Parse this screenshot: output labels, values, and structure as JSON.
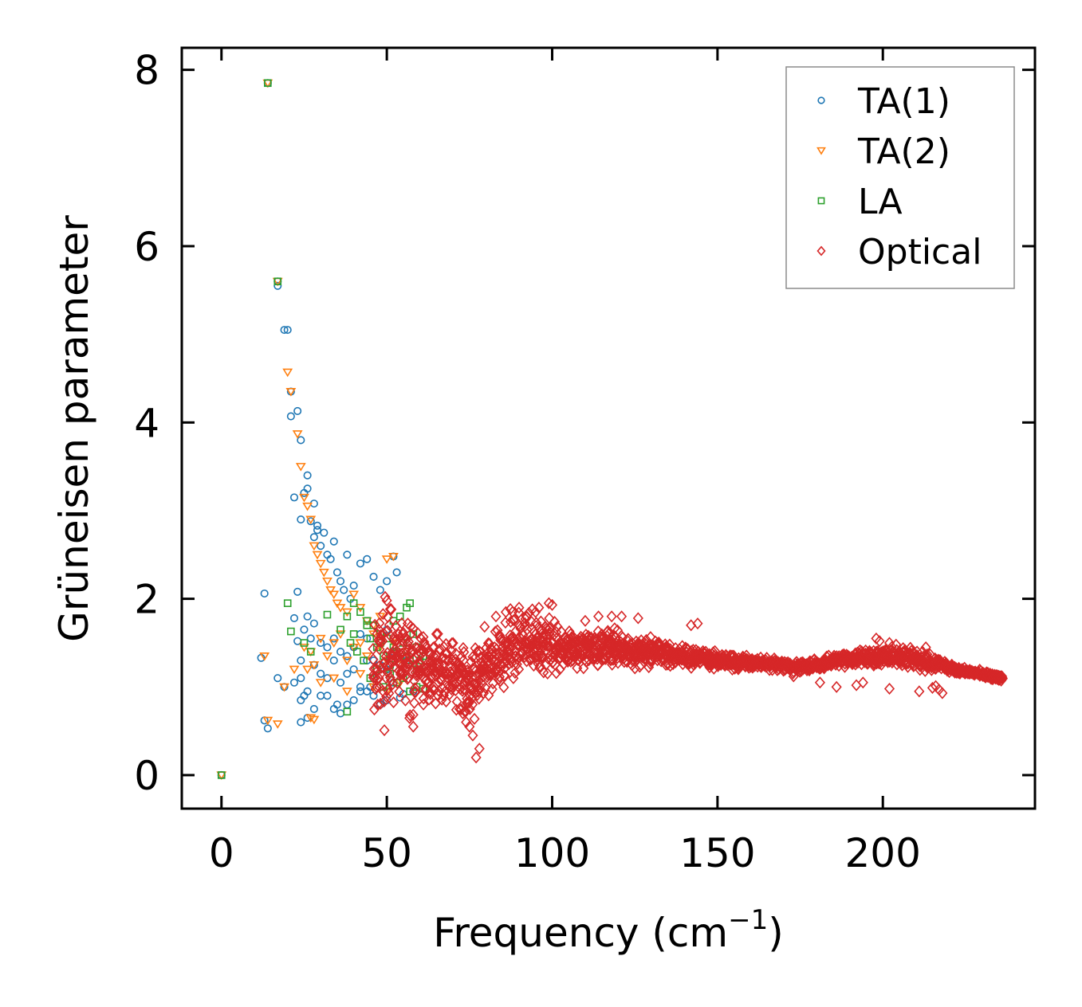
{
  "chart_data": {
    "type": "scatter",
    "xlabel": "Frequency (cm",
    "xlabel_superscript": "−1",
    "xlabel_suffix": ")",
    "ylabel": "Grüneisen parameter",
    "xlim": [
      -12,
      246
    ],
    "ylim": [
      -0.38,
      8.25
    ],
    "xticks": [
      0,
      50,
      100,
      150,
      200
    ],
    "xtick_labels": [
      "0",
      "50",
      "100",
      "150",
      "200"
    ],
    "yticks": [
      0,
      2,
      4,
      6,
      8
    ],
    "ytick_labels": [
      "0",
      "2",
      "4",
      "6",
      "8"
    ],
    "grid": false,
    "legend_position": "top-right",
    "series": [
      {
        "name": "TA(1)",
        "marker": "circle",
        "color": "#1f77b4",
        "x": [
          0,
          14,
          17,
          17,
          19,
          20,
          21,
          21,
          22,
          23,
          24,
          24,
          25,
          26,
          26,
          27,
          28,
          28,
          29,
          29,
          30,
          31,
          32,
          33,
          34,
          35,
          36,
          37,
          38,
          39,
          40,
          42,
          44,
          46,
          48,
          50,
          52,
          53,
          13,
          12,
          13,
          14,
          23,
          22,
          23,
          24,
          25,
          26,
          27,
          28,
          30,
          32,
          34,
          36,
          38,
          40,
          42,
          44,
          46,
          48,
          50,
          52,
          22,
          24,
          26,
          28,
          30,
          32,
          34,
          36,
          38,
          40,
          42,
          44,
          46,
          48,
          50,
          52,
          54,
          56,
          24,
          28,
          32,
          36,
          40,
          44,
          48,
          17,
          19,
          24,
          26,
          30,
          34,
          38,
          42,
          46,
          50,
          54,
          58,
          25,
          35,
          45,
          55
        ],
        "y": [
          0,
          7.85,
          5.6,
          5.55,
          5.05,
          5.05,
          4.35,
          4.07,
          3.15,
          4.13,
          3.8,
          2.9,
          3.2,
          3.4,
          3.25,
          2.88,
          3.08,
          2.7,
          2.83,
          2.78,
          2.6,
          2.75,
          2.5,
          2.45,
          2.65,
          2.3,
          2.2,
          2.1,
          2.5,
          2.0,
          2.15,
          2.4,
          2.45,
          2.25,
          2.1,
          2.2,
          2.48,
          2.3,
          2.06,
          1.33,
          0.62,
          0.53,
          2.08,
          1.78,
          1.52,
          1.3,
          1.65,
          1.8,
          1.55,
          1.72,
          1.5,
          1.45,
          1.55,
          1.4,
          1.35,
          1.45,
          1.6,
          1.55,
          1.3,
          1.5,
          1.65,
          1.4,
          1.05,
          1.1,
          0.95,
          1.25,
          1.15,
          1.1,
          1.3,
          1.05,
          1.15,
          1.2,
          1.0,
          1.3,
          1.1,
          1.25,
          1.2,
          1.05,
          1.15,
          1.3,
          0.85,
          0.75,
          0.9,
          0.7,
          0.85,
          0.95,
          0.8,
          1.1,
          1.0,
          0.6,
          0.65,
          0.9,
          0.75,
          0.8,
          0.95,
          0.9,
          0.85,
          0.88,
          0.95,
          0.9,
          0.8,
          1.0,
          0.92
        ]
      },
      {
        "name": "TA(2)",
        "marker": "triangle-down",
        "color": "#ff7f0e",
        "x": [
          0,
          14,
          17,
          20,
          21,
          23,
          24,
          25,
          26,
          27,
          28,
          29,
          30,
          31,
          32,
          33,
          34,
          35,
          36,
          38,
          40,
          42,
          44,
          46,
          48,
          50,
          52,
          13,
          14,
          17,
          19,
          22,
          25,
          27,
          28,
          30,
          32,
          34,
          36,
          38,
          40,
          42,
          44,
          46,
          48,
          50,
          52,
          54,
          56,
          26,
          30,
          34,
          38,
          42,
          46,
          50,
          54,
          27,
          28
        ],
        "y": [
          0,
          7.85,
          5.6,
          4.57,
          4.35,
          3.87,
          3.5,
          3.15,
          3.05,
          2.9,
          2.6,
          2.5,
          2.4,
          2.3,
          2.2,
          2.1,
          2.05,
          1.95,
          1.9,
          1.85,
          2.05,
          1.9,
          1.75,
          1.7,
          1.8,
          2.45,
          2.48,
          1.35,
          0.62,
          0.58,
          1.0,
          1.2,
          1.45,
          1.4,
          1.25,
          1.55,
          1.35,
          1.5,
          1.6,
          1.3,
          1.45,
          1.5,
          1.35,
          1.6,
          1.45,
          1.3,
          1.5,
          1.25,
          1.4,
          1.2,
          1.05,
          1.1,
          0.95,
          1.15,
          1.0,
          0.95,
          1.05,
          0.65,
          0.63
        ]
      },
      {
        "name": "LA",
        "marker": "square",
        "color": "#2ca02c",
        "x": [
          0,
          14,
          17,
          20,
          21,
          25,
          27,
          32,
          36,
          38,
          40,
          42,
          44,
          46,
          48,
          50,
          52,
          54,
          56,
          57,
          58,
          59,
          60,
          61,
          39,
          41,
          43,
          45,
          47,
          49,
          51,
          53,
          55,
          57,
          59,
          45,
          47,
          49,
          51,
          53,
          55,
          57,
          59,
          61,
          40,
          44,
          48,
          52,
          56,
          60,
          38
        ],
        "y": [
          0,
          7.85,
          5.6,
          1.95,
          1.63,
          1.5,
          1.4,
          1.82,
          1.65,
          0.72,
          1.95,
          1.85,
          1.75,
          1.7,
          1.6,
          1.55,
          1.75,
          1.8,
          1.9,
          1.95,
          1.6,
          1.45,
          1.3,
          1.35,
          1.5,
          1.4,
          1.3,
          1.55,
          1.45,
          1.35,
          1.25,
          1.4,
          1.5,
          1.3,
          1.2,
          1.1,
          1.2,
          1.0,
          1.15,
          1.05,
          1.1,
          0.95,
          1.0,
          0.98,
          1.6,
          1.7,
          1.5,
          1.45,
          1.35,
          1.2,
          1.8
        ]
      },
      {
        "name": "Optical",
        "marker": "diamond",
        "color": "#d62728",
        "generator": {
          "x_from": 46,
          "x_to": 236,
          "points_per_x": 5,
          "envelope": [
            [
              46,
              1.3,
              0.9
            ],
            [
              55,
              1.3,
              0.8
            ],
            [
              62,
              1.2,
              0.5
            ],
            [
              68,
              1.2,
              0.5
            ],
            [
              72,
              1.1,
              0.5
            ],
            [
              76,
              1.0,
              0.6
            ],
            [
              80,
              1.25,
              0.6
            ],
            [
              86,
              1.4,
              0.55
            ],
            [
              92,
              1.5,
              0.45
            ],
            [
              98,
              1.5,
              0.45
            ],
            [
              105,
              1.45,
              0.35
            ],
            [
              112,
              1.45,
              0.3
            ],
            [
              118,
              1.45,
              0.28
            ],
            [
              126,
              1.4,
              0.22
            ],
            [
              135,
              1.38,
              0.2
            ],
            [
              145,
              1.32,
              0.14
            ],
            [
              160,
              1.28,
              0.1
            ],
            [
              175,
              1.22,
              0.08
            ],
            [
              190,
              1.32,
              0.12
            ],
            [
              200,
              1.35,
              0.14
            ],
            [
              212,
              1.3,
              0.14
            ],
            [
              222,
              1.2,
              0.07
            ],
            [
              236,
              1.1,
              0.04
            ]
          ],
          "seed": 17
        },
        "x": [
          77,
          78,
          76,
          75,
          74,
          73,
          72,
          58,
          50,
          65,
          99,
          100,
          96,
          94,
          90,
          88,
          86,
          83,
          118,
          114,
          110,
          121,
          126,
          142,
          144,
          198,
          199,
          202,
          204,
          213,
          212,
          217,
          218,
          192,
          202,
          211,
          173,
          181,
          186,
          194,
          215,
          216,
          54
        ],
        "y": [
          0.2,
          0.3,
          0.45,
          0.55,
          0.6,
          0.7,
          0.75,
          0.55,
          1.98,
          1.6,
          1.95,
          1.93,
          1.9,
          1.88,
          1.9,
          1.85,
          1.85,
          1.8,
          1.8,
          1.8,
          1.75,
          1.8,
          1.78,
          1.7,
          1.72,
          1.55,
          1.52,
          1.5,
          1.48,
          1.45,
          1.4,
          0.97,
          0.93,
          1.02,
          0.98,
          0.95,
          1.12,
          1.05,
          1.0,
          1.05,
          0.99,
          1.01,
          1.25
        ]
      }
    ]
  }
}
